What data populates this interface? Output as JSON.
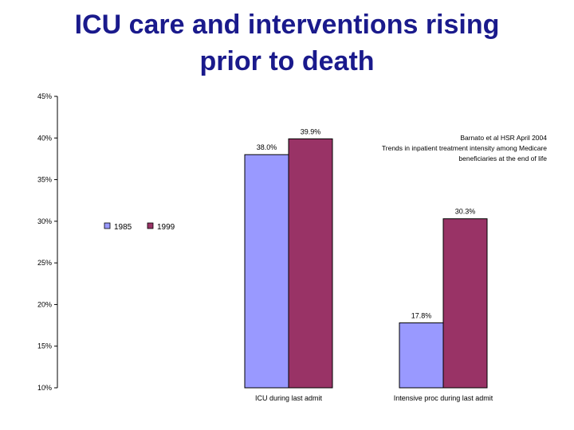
{
  "slide": {
    "title_line1": "ICU care and interventions rising",
    "title_line2": "prior to death"
  },
  "colors": {
    "title": "#1a1a8c",
    "series_1985": "#9999ff",
    "series_1999": "#993366"
  },
  "chart_data": {
    "type": "bar",
    "title": "",
    "xlabel": "",
    "ylabel": "",
    "ylim": [
      0.1,
      0.45
    ],
    "yticks": [
      0.1,
      0.15,
      0.2,
      0.25,
      0.3,
      0.35,
      0.4,
      0.45
    ],
    "ytick_labels": [
      "10%",
      "15%",
      "20%",
      "25%",
      "30%",
      "35%",
      "40%",
      "45%"
    ],
    "categories": [
      "ICU during last admit",
      "Intensive proc during last admit"
    ],
    "series": [
      {
        "name": "1985",
        "values": [
          0.38,
          0.178
        ],
        "labels": [
          "38.0%",
          "17.8%"
        ]
      },
      {
        "name": "1999",
        "values": [
          0.399,
          0.303
        ],
        "labels": [
          "39.9%",
          "30.3%"
        ]
      }
    ],
    "grid": false,
    "legend_position": "upper-left",
    "annotation": [
      "Barnato et al HSR April 2004",
      "Trends in inpatient treatment intensity among Medicare",
      "beneficiaries at the end of life"
    ]
  }
}
